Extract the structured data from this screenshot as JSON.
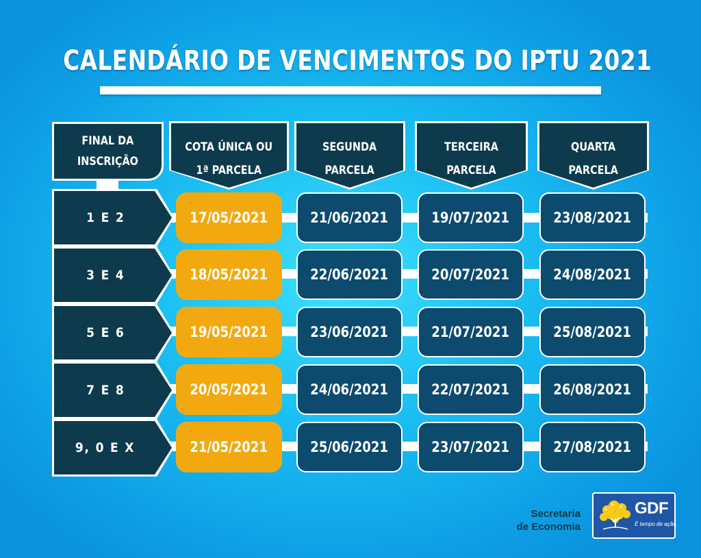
{
  "title": "CALENDÁRIO DE VENCIMENTOS DO IPTU 2021",
  "headers": {
    "first": [
      "FINAL DA",
      "INSCRIÇÃO"
    ],
    "columns": [
      [
        "COTA ÚNICA OU",
        "1ª PARCELA"
      ],
      [
        "SEGUNDA",
        "PARCELA"
      ],
      [
        "TERCEIRA",
        "PARCELA"
      ],
      [
        "QUARTA",
        "PARCELA"
      ]
    ]
  },
  "rows": [
    {
      "label": "1 E 2",
      "dates": [
        "17/05/2021",
        "21/06/2021",
        "19/07/2021",
        "23/08/2021"
      ]
    },
    {
      "label": "3 E 4",
      "dates": [
        "18/05/2021",
        "22/06/2021",
        "20/07/2021",
        "24/08/2021"
      ]
    },
    {
      "label": "5 E 6",
      "dates": [
        "19/05/2021",
        "23/06/2021",
        "21/07/2021",
        "25/08/2021"
      ]
    },
    {
      "label": "7 E 8",
      "dates": [
        "20/05/2021",
        "24/06/2021",
        "22/07/2021",
        "26/08/2021"
      ]
    },
    {
      "label": "9, 0 E X",
      "dates": [
        "21/05/2021",
        "25/06/2021",
        "23/07/2021",
        "27/08/2021"
      ]
    }
  ],
  "footer": {
    "secretaria_line1": "Secretaria",
    "secretaria_line2": "de Economia",
    "gdf_name": "GDF",
    "gdf_slogan": "É tempo de ação."
  },
  "colors": {
    "dark": "#0d3a4c",
    "gold": "#f2a90f",
    "cell_blue": "#0c4a6e",
    "gdf_blue": "#1f57a6"
  },
  "icons": [
    "gdf-ipe-tree-logo"
  ]
}
